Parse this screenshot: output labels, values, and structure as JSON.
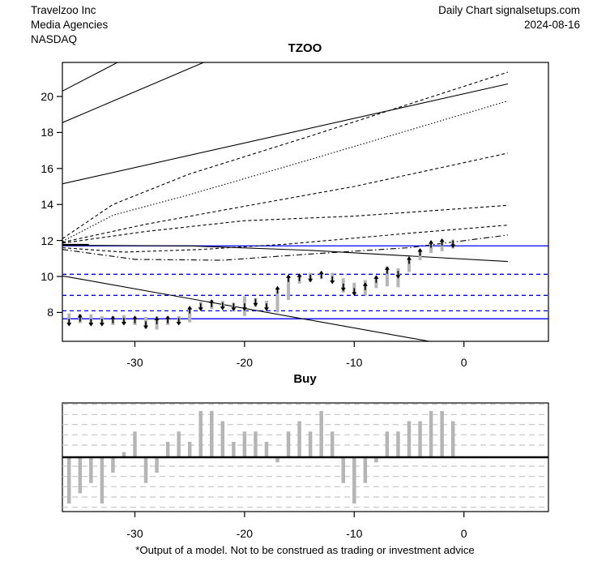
{
  "header": {
    "company": "Travelzoo Inc",
    "industry": "Media Agencies",
    "exchange": "NASDAQ",
    "chart_type": "Daily Chart signalsetups.com",
    "date": "2024-08-16"
  },
  "footer": {
    "disclaimer": "*Output of a model. Not to be construed as trading or investment advice"
  },
  "colors": {
    "level_blue": "#0000ff",
    "line_black": "#000000",
    "bar_gray": "#b5b5b5",
    "grid_gray": "#c6c6c6"
  },
  "chart_data": [
    {
      "name": "price-projection-chart",
      "type": "line",
      "title": "TZOO",
      "xlabel": "",
      "ylabel": "",
      "xlim": [
        -36.6,
        7.7
      ],
      "ylim": [
        6.4,
        21.9
      ],
      "x_ticks": [
        -30,
        -20,
        -10,
        0
      ],
      "y_ticks": [
        8,
        10,
        12,
        14,
        16,
        18,
        20
      ],
      "grid": "off",
      "legend": "none",
      "horizontal_levels": [
        {
          "value": 11.7,
          "style": "solid"
        },
        {
          "value": 10.12,
          "style": "dashed"
        },
        {
          "value": 8.95,
          "style": "dashed"
        },
        {
          "value": 8.09,
          "style": "dashed"
        },
        {
          "value": 7.65,
          "style": "solid"
        }
      ],
      "projection_lines": [
        {
          "style": "solid",
          "points": [
            [
              -36.6,
              20.3
            ],
            [
              -31.4,
              21.95
            ]
          ]
        },
        {
          "style": "solid",
          "points": [
            [
              -36.6,
              18.55
            ],
            [
              -23.5,
              21.95
            ]
          ]
        },
        {
          "style": "solid",
          "points": [
            [
              -36.6,
              15.15
            ],
            [
              4,
              20.7
            ]
          ]
        },
        {
          "style": "dashed",
          "points": [
            [
              -36.6,
              12.1
            ],
            [
              -32,
              14.0
            ],
            [
              -25,
              15.7
            ],
            [
              -14,
              17.8
            ],
            [
              4,
              21.35
            ]
          ]
        },
        {
          "style": "dotted",
          "points": [
            [
              -36.6,
              11.95
            ],
            [
              -32,
              13.4
            ],
            [
              -25,
              14.55
            ],
            [
              -14,
              16.5
            ],
            [
              4,
              19.75
            ]
          ]
        },
        {
          "style": "dashed",
          "points": [
            [
              -36.6,
              11.9
            ],
            [
              -29,
              12.9
            ],
            [
              -20,
              13.9
            ],
            [
              -10,
              15.0
            ],
            [
              4,
              16.85
            ]
          ]
        },
        {
          "style": "dashed",
          "points": [
            [
              -36.6,
              11.85
            ],
            [
              -29,
              12.5
            ],
            [
              -20,
              13.1
            ],
            [
              -10,
              13.35
            ],
            [
              4,
              13.95
            ]
          ]
        },
        {
          "style": "dashed",
          "points": [
            [
              -36.6,
              11.6
            ],
            [
              -31,
              11.35
            ],
            [
              -24,
              11.5
            ],
            [
              -16,
              11.8
            ],
            [
              -5,
              12.4
            ],
            [
              4,
              12.85
            ]
          ]
        },
        {
          "style": "dashdot",
          "points": [
            [
              -36.6,
              11.5
            ],
            [
              -30,
              10.95
            ],
            [
              -22,
              10.9
            ],
            [
              -14,
              11.25
            ],
            [
              -5,
              11.6
            ],
            [
              4,
              12.3
            ]
          ]
        },
        {
          "style": "solid",
          "points": [
            [
              -36.6,
              11.73
            ],
            [
              -25,
              11.7
            ],
            [
              -14,
              11.45
            ],
            [
              4,
              10.83
            ]
          ]
        },
        {
          "style": "solid-thick",
          "points": [
            [
              -36.6,
              11.75
            ],
            [
              -34.2,
              11.75
            ]
          ]
        },
        {
          "style": "solid",
          "points": [
            [
              -36.6,
              10.03
            ],
            [
              -3.2,
              6.4
            ]
          ]
        }
      ],
      "candles": [
        {
          "x": -36,
          "high": 7.95,
          "low": 7.35,
          "open": 7.7,
          "close": 7.45
        },
        {
          "x": -35,
          "high": 7.9,
          "low": 7.4,
          "open": 7.55,
          "close": 7.7
        },
        {
          "x": -34,
          "high": 7.9,
          "low": 7.3,
          "open": 7.7,
          "close": 7.45
        },
        {
          "x": -33,
          "high": 7.8,
          "low": 7.3,
          "open": 7.55,
          "close": 7.45
        },
        {
          "x": -32,
          "high": 7.8,
          "low": 7.3,
          "open": 7.45,
          "close": 7.6
        },
        {
          "x": -31,
          "high": 7.85,
          "low": 7.35,
          "open": 7.6,
          "close": 7.5
        },
        {
          "x": -30,
          "high": 7.8,
          "low": 7.3,
          "open": 7.5,
          "close": 7.6
        },
        {
          "x": -29,
          "high": 7.75,
          "low": 7.1,
          "open": 7.55,
          "close": 7.3
        },
        {
          "x": -28,
          "high": 7.8,
          "low": 7.05,
          "open": 7.3,
          "close": 7.55
        },
        {
          "x": -27,
          "high": 7.8,
          "low": 7.3,
          "open": 7.5,
          "close": 7.6
        },
        {
          "x": -26,
          "high": 7.8,
          "low": 7.4,
          "open": 7.6,
          "close": 7.5
        },
        {
          "x": -25,
          "high": 8.3,
          "low": 7.45,
          "open": 7.55,
          "close": 8.15
        },
        {
          "x": -24,
          "high": 8.6,
          "low": 8.15,
          "open": 8.45,
          "close": 8.3
        },
        {
          "x": -23,
          "high": 8.7,
          "low": 8.2,
          "open": 8.35,
          "close": 8.5
        },
        {
          "x": -22,
          "high": 8.65,
          "low": 8.25,
          "open": 8.55,
          "close": 8.35
        },
        {
          "x": -21,
          "high": 8.55,
          "low": 8.05,
          "open": 8.35,
          "close": 8.3
        },
        {
          "x": -20,
          "high": 8.9,
          "low": 7.8,
          "open": 8.85,
          "close": 8.3
        },
        {
          "x": -19,
          "high": 8.8,
          "low": 8.3,
          "open": 8.7,
          "close": 8.55
        },
        {
          "x": -18,
          "high": 8.65,
          "low": 8.2,
          "open": 8.6,
          "close": 8.3
        },
        {
          "x": -17,
          "high": 9.35,
          "low": 8.0,
          "open": 8.2,
          "close": 9.25
        },
        {
          "x": -16,
          "high": 10.0,
          "low": 8.7,
          "open": 9.3,
          "close": 9.9
        },
        {
          "x": -15,
          "high": 10.05,
          "low": 9.6,
          "open": 9.7,
          "close": 9.95
        },
        {
          "x": -14,
          "high": 10.2,
          "low": 9.7,
          "open": 10.1,
          "close": 9.9
        },
        {
          "x": -13,
          "high": 10.25,
          "low": 9.85,
          "open": 9.95,
          "close": 10.1
        },
        {
          "x": -12,
          "high": 10.2,
          "low": 9.7,
          "open": 10.1,
          "close": 9.8
        },
        {
          "x": -11,
          "high": 9.9,
          "low": 9.1,
          "open": 9.8,
          "close": 9.4
        },
        {
          "x": -10,
          "high": 9.65,
          "low": 9.0,
          "open": 9.5,
          "close": 9.15
        },
        {
          "x": -9,
          "high": 9.8,
          "low": 8.95,
          "open": 9.2,
          "close": 9.45
        },
        {
          "x": -8,
          "high": 10.0,
          "low": 9.35,
          "open": 9.5,
          "close": 9.85
        },
        {
          "x": -7,
          "high": 10.55,
          "low": 9.45,
          "open": 10.2,
          "close": 10.35
        },
        {
          "x": -6,
          "high": 10.45,
          "low": 9.4,
          "open": 10.35,
          "close": 10.1
        },
        {
          "x": -5,
          "high": 11.0,
          "low": 10.25,
          "open": 10.4,
          "close": 10.9
        },
        {
          "x": -4,
          "high": 11.5,
          "low": 10.9,
          "open": 11.0,
          "close": 11.35
        },
        {
          "x": -3,
          "high": 11.9,
          "low": 11.3,
          "open": 11.5,
          "close": 11.8
        },
        {
          "x": -2,
          "high": 12.05,
          "low": 11.4,
          "open": 11.65,
          "close": 11.9
        },
        {
          "x": -1,
          "high": 12.05,
          "low": 11.55,
          "open": 11.95,
          "close": 11.8
        }
      ]
    },
    {
      "name": "buy-signal-chart",
      "type": "bar",
      "title": "Buy",
      "x_ticks": [
        -30,
        -20,
        -10,
        0
      ],
      "xlim": [
        -36.6,
        7.7
      ],
      "ylim": [
        -5.3,
        5.3
      ],
      "grid": "dashed-horizontal",
      "categories": [
        -36,
        -35,
        -34,
        -33,
        -32,
        -31,
        -30,
        -29,
        -28,
        -27,
        -26,
        -25,
        -24,
        -23,
        -22,
        -21,
        -20,
        -19,
        -18,
        -17,
        -16,
        -15,
        -14,
        -13,
        -12,
        -11,
        -10,
        -9,
        -8,
        -7,
        -6,
        -5,
        -4,
        -3,
        -2,
        -1
      ],
      "values": [
        -4.5,
        -3.5,
        -2.5,
        -4.5,
        -1.5,
        0.5,
        2.5,
        -2.5,
        -1.5,
        1.5,
        2.5,
        1.5,
        4.5,
        4.5,
        3.5,
        1.5,
        2.5,
        2.5,
        1.5,
        -0.5,
        2.5,
        3.5,
        2.5,
        4.5,
        2.5,
        -2.5,
        -4.5,
        -2.5,
        -0.5,
        2.5,
        2.5,
        3.5,
        3.5,
        4.5,
        4.5,
        3.5
      ]
    }
  ]
}
